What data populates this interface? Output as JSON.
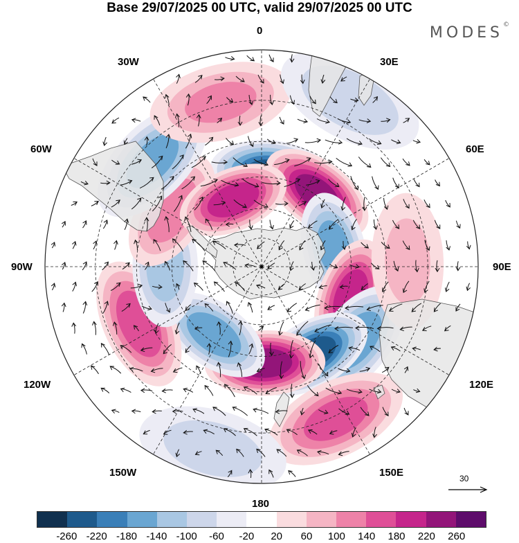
{
  "title": "Base 29/07/2025 00 UTC, valid 29/07/2025 00 UTC",
  "brand": {
    "name": "MODES",
    "mark": "©"
  },
  "longitudes": {
    "top": "0",
    "bottom": "180",
    "left": "90W",
    "right": "90E",
    "upper_left": "30W",
    "upper_right": "30E",
    "mid_left_upper": "60W",
    "mid_right_upper": "60E",
    "mid_left_lower": "120W",
    "mid_right_lower": "120E",
    "lower_left": "150W",
    "lower_right": "150E"
  },
  "wind_reference": {
    "value": "30",
    "icon": "arrow-right-icon"
  },
  "colorbar": {
    "colors": [
      "#10304f",
      "#1e5a8c",
      "#3a7fb8",
      "#6aa6d2",
      "#a9c7e3",
      "#cdd6ea",
      "#ececf5",
      "#ffffff",
      "#fadcdf",
      "#f5b5c4",
      "#ee82a8",
      "#df4f97",
      "#c5258b",
      "#931579",
      "#5e0c6b"
    ],
    "labels": [
      "-260",
      "-220",
      "-180",
      "-140",
      "-100",
      "-60",
      "-20",
      "20",
      "60",
      "100",
      "140",
      "180",
      "220",
      "260"
    ]
  },
  "map_colors": {
    "land": "#e6e6e6",
    "coast": "#555555",
    "grid": "#222222",
    "arrow": "#111111"
  },
  "anomalies": [
    {
      "lon": 5,
      "lat": -43,
      "value": -230
    },
    {
      "lon": 37,
      "lat": -44,
      "value": 240
    },
    {
      "lon": 76,
      "lat": -52,
      "value": -160
    },
    {
      "lon": 109,
      "lat": -43,
      "value": 210
    },
    {
      "lon": 128,
      "lat": -32,
      "value": -170
    },
    {
      "lon": 150,
      "lat": -40,
      "value": -240
    },
    {
      "lon": 178,
      "lat": -42,
      "value": 250
    },
    {
      "lon": 154,
      "lat": -14,
      "value": 150
    },
    {
      "lon": 215,
      "lat": -48,
      "value": -170
    },
    {
      "lon": 245,
      "lat": -26,
      "value": 170
    },
    {
      "lon": 270,
      "lat": -42,
      "value": -120
    },
    {
      "lon": 302,
      "lat": -38,
      "value": 120
    },
    {
      "lon": 337,
      "lat": -53,
      "value": 210
    },
    {
      "lon": 314,
      "lat": -20,
      "value": -150
    },
    {
      "lon": 346,
      "lat": -14,
      "value": 100
    },
    {
      "lon": 28,
      "lat": -8,
      "value": -80
    },
    {
      "lon": 88,
      "lat": -22,
      "value": 60
    },
    {
      "lon": 195,
      "lat": -8,
      "value": -70
    }
  ]
}
